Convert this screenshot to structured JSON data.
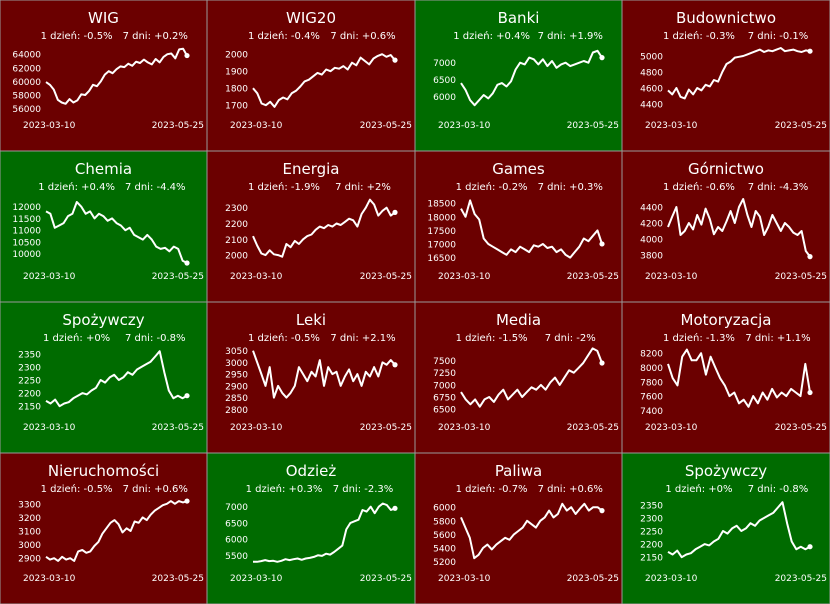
{
  "colors": {
    "negative": "#6b0000",
    "positive": "#006b00",
    "line": "#ffffff",
    "text": "#ffffff",
    "border": "#9a9a9a"
  },
  "labels": {
    "day": "1 dzień:",
    "week": "7 dni:"
  },
  "chart_data": [
    {
      "type": "line",
      "title": "WIG",
      "day_change": "-0.5%",
      "week_change": "+0.2%",
      "trend": "negative",
      "x_start": "2023-03-10",
      "x_end": "2023-05-25",
      "yticks": [
        "56000",
        "58000",
        "60000",
        "62000",
        "64000"
      ],
      "ylim": [
        55500,
        65500
      ],
      "values": [
        59900,
        59500,
        58800,
        57300,
        56900,
        56700,
        57400,
        56900,
        57200,
        58100,
        58000,
        58600,
        59500,
        59300,
        60000,
        61000,
        61500,
        61200,
        61800,
        62200,
        62100,
        62600,
        62300,
        62900,
        62700,
        63200,
        62800,
        62500,
        63300,
        62800,
        63600,
        64000,
        64100,
        63400,
        64700,
        64800,
        63800
      ]
    },
    {
      "type": "line",
      "title": "WIG20",
      "day_change": "-0.4%",
      "week_change": "+0.6%",
      "trend": "negative",
      "x_start": "2023-03-10",
      "x_end": "2023-05-25",
      "yticks": [
        "1700",
        "1800",
        "1900",
        "2000"
      ],
      "ylim": [
        1660,
        2060
      ],
      "values": [
        1800,
        1770,
        1710,
        1700,
        1720,
        1690,
        1730,
        1745,
        1735,
        1770,
        1785,
        1810,
        1840,
        1850,
        1870,
        1890,
        1880,
        1910,
        1900,
        1920,
        1915,
        1930,
        1910,
        1950,
        1935,
        1980,
        1960,
        1940,
        1975,
        1990,
        2000,
        1985,
        1995,
        1965
      ]
    },
    {
      "type": "line",
      "title": "Banki",
      "day_change": "+0.4%",
      "week_change": "+1.9%",
      "trend": "positive",
      "x_start": "2023-03-10",
      "x_end": "2023-05-25",
      "yticks": [
        "6000",
        "6500",
        "7000"
      ],
      "ylim": [
        5550,
        7550
      ],
      "values": [
        6400,
        6200,
        5900,
        5750,
        5900,
        6050,
        5950,
        6100,
        6350,
        6400,
        6300,
        6450,
        6800,
        7000,
        6950,
        7150,
        7100,
        6950,
        7100,
        6900,
        7050,
        6850,
        6950,
        7000,
        6900,
        6950,
        7000,
        7050,
        7000,
        7300,
        7350,
        7150
      ]
    },
    {
      "type": "line",
      "title": "Budownictwo",
      "day_change": "-0.3%",
      "week_change": "-0.1%",
      "trend": "negative",
      "x_start": "2023-03-10",
      "x_end": "2023-05-25",
      "yticks": [
        "4400",
        "4600",
        "4800",
        "5000"
      ],
      "ylim": [
        4300,
        5150
      ],
      "values": [
        4570,
        4520,
        4600,
        4490,
        4470,
        4580,
        4520,
        4600,
        4570,
        4640,
        4620,
        4700,
        4680,
        4800,
        4900,
        4930,
        4980,
        4990,
        5000,
        5020,
        5040,
        5060,
        5080,
        5050,
        5070,
        5060,
        5080,
        5100,
        5060,
        5070,
        5080,
        5060,
        5050,
        5070,
        5060
      ]
    },
    {
      "type": "line",
      "title": "Chemia",
      "day_change": "+0.4%",
      "week_change": "-4.4%",
      "trend": "positive",
      "x_start": "2023-03-10",
      "x_end": "2023-05-25",
      "yticks": [
        "10000",
        "10500",
        "11000",
        "11500",
        "12000"
      ],
      "ylim": [
        9600,
        12500
      ],
      "values": [
        11800,
        11700,
        11100,
        11200,
        11300,
        11600,
        11700,
        12200,
        12000,
        11700,
        11800,
        11500,
        11700,
        11600,
        11400,
        11500,
        11300,
        11200,
        11000,
        11100,
        10800,
        10700,
        10600,
        10800,
        10600,
        10300,
        10200,
        10250,
        10100,
        10300,
        10200,
        9700,
        9600
      ]
    },
    {
      "type": "line",
      "title": "Energia",
      "day_change": "-1.9%",
      "week_change": "+2%",
      "trend": "negative",
      "x_start": "2023-03-10",
      "x_end": "2023-05-25",
      "yticks": [
        "2000",
        "2100",
        "2200",
        "2300"
      ],
      "ylim": [
        1950,
        2380
      ],
      "values": [
        2120,
        2060,
        2010,
        2000,
        2030,
        2005,
        2000,
        1990,
        2070,
        2050,
        2090,
        2070,
        2100,
        2120,
        2130,
        2160,
        2180,
        2170,
        2190,
        2180,
        2200,
        2190,
        2210,
        2230,
        2220,
        2180,
        2260,
        2300,
        2350,
        2320,
        2250,
        2280,
        2300,
        2250,
        2270
      ]
    },
    {
      "type": "line",
      "title": "Games",
      "day_change": "-0.2%",
      "week_change": "+0.3%",
      "trend": "negative",
      "x_start": "2023-03-10",
      "x_end": "2023-05-25",
      "yticks": [
        "16500",
        "17000",
        "17500",
        "18000",
        "18500"
      ],
      "ylim": [
        16300,
        18800
      ],
      "values": [
        18300,
        18000,
        18600,
        18100,
        17900,
        17200,
        17000,
        16900,
        16800,
        16700,
        16600,
        16800,
        16700,
        16900,
        16800,
        16700,
        16950,
        16900,
        17000,
        16850,
        16900,
        16700,
        16800,
        16600,
        16500,
        16700,
        16900,
        17200,
        17100,
        17300,
        17500,
        17000
      ]
    },
    {
      "type": "line",
      "title": "Górnictwo",
      "day_change": "-0.6%",
      "week_change": "-4.3%",
      "trend": "negative",
      "x_start": "2023-03-10",
      "x_end": "2023-05-25",
      "yticks": [
        "3800",
        "4000",
        "4200",
        "4400"
      ],
      "ylim": [
        3700,
        4550
      ],
      "values": [
        4150,
        4280,
        4400,
        4050,
        4100,
        4200,
        4120,
        4300,
        4180,
        4380,
        4250,
        4060,
        4150,
        4100,
        4220,
        4350,
        4200,
        4400,
        4500,
        4300,
        4150,
        4350,
        4280,
        4050,
        4150,
        4300,
        4200,
        4100,
        4200,
        4150,
        4080,
        4050,
        4100,
        3850,
        3780
      ]
    },
    {
      "type": "line",
      "title": "Spożywczy",
      "day_change": "+0%",
      "week_change": "-0.8%",
      "trend": "positive",
      "x_start": "2023-03-10",
      "x_end": "2023-05-25",
      "yticks": [
        "2150",
        "2200",
        "2250",
        "2300",
        "2350"
      ],
      "ylim": [
        2120,
        2380
      ],
      "values": [
        2170,
        2160,
        2175,
        2150,
        2160,
        2165,
        2180,
        2190,
        2200,
        2195,
        2210,
        2220,
        2250,
        2240,
        2260,
        2270,
        2250,
        2260,
        2280,
        2270,
        2290,
        2300,
        2310,
        2320,
        2340,
        2360,
        2280,
        2210,
        2180,
        2190,
        2180,
        2190
      ]
    },
    {
      "type": "line",
      "title": "Leki",
      "day_change": "-0.5%",
      "week_change": "+2.1%",
      "trend": "negative",
      "x_start": "2023-03-10",
      "x_end": "2023-05-25",
      "yticks": [
        "2800",
        "2850",
        "2900",
        "2950",
        "3000",
        "3050"
      ],
      "ylim": [
        2780,
        3070
      ],
      "values": [
        3050,
        3000,
        2950,
        2900,
        2980,
        2850,
        2900,
        2870,
        2850,
        2870,
        2900,
        2980,
        2950,
        2920,
        2960,
        2940,
        3010,
        2900,
        2980,
        2950,
        2960,
        2900,
        2940,
        2970,
        2920,
        2950,
        2900,
        2960,
        2940,
        2980,
        2940,
        3000,
        2990,
        3010,
        2990
      ]
    },
    {
      "type": "line",
      "title": "Media",
      "day_change": "-1.5%",
      "week_change": "-2%",
      "trend": "negative",
      "x_start": "2023-03-10",
      "x_end": "2023-05-25",
      "yticks": [
        "6500",
        "6750",
        "7000",
        "7250",
        "7500"
      ],
      "ylim": [
        6400,
        7800
      ],
      "values": [
        6850,
        6700,
        6600,
        6700,
        6550,
        6700,
        6750,
        6650,
        6800,
        6900,
        6700,
        6800,
        6900,
        6750,
        6850,
        6950,
        6900,
        7000,
        6900,
        7050,
        7150,
        7000,
        7150,
        7300,
        7250,
        7350,
        7450,
        7600,
        7750,
        7700,
        7450
      ]
    },
    {
      "type": "line",
      "title": "Motoryzacja",
      "day_change": "-1.3%",
      "week_change": "+1.1%",
      "trend": "negative",
      "x_start": "2023-03-10",
      "x_end": "2023-05-25",
      "yticks": [
        "7400",
        "7600",
        "7800",
        "8000",
        "8200"
      ],
      "ylim": [
        7350,
        8300
      ],
      "values": [
        8050,
        7850,
        7750,
        8150,
        8250,
        8100,
        8100,
        8200,
        7900,
        8150,
        8000,
        7850,
        7750,
        7600,
        7650,
        7500,
        7550,
        7450,
        7600,
        7500,
        7650,
        7550,
        7700,
        7580,
        7650,
        7600,
        7700,
        7650,
        7600,
        8050,
        7650
      ]
    },
    {
      "type": "line",
      "title": "Nieruchomości",
      "day_change": "-0.5%",
      "week_change": "+0.6%",
      "trend": "negative",
      "x_start": "2023-03-10",
      "x_end": "2023-05-25",
      "yticks": [
        "2900",
        "3000",
        "3100",
        "3200",
        "3300"
      ],
      "ylim": [
        2850,
        3350
      ],
      "values": [
        2910,
        2890,
        2900,
        2880,
        2910,
        2890,
        2900,
        2880,
        2950,
        2960,
        2940,
        2950,
        2990,
        3020,
        3080,
        3120,
        3160,
        3180,
        3150,
        3090,
        3120,
        3100,
        3170,
        3160,
        3200,
        3180,
        3220,
        3250,
        3270,
        3290,
        3300,
        3320,
        3300,
        3320,
        3310,
        3320
      ]
    },
    {
      "type": "line",
      "title": "Odzież",
      "day_change": "+0.3%",
      "week_change": "-2.3%",
      "trend": "positive",
      "x_start": "2023-03-10",
      "x_end": "2023-05-25",
      "yticks": [
        "5500",
        "6000",
        "6500",
        "7000"
      ],
      "ylim": [
        5200,
        7300
      ],
      "values": [
        5300,
        5300,
        5320,
        5350,
        5320,
        5330,
        5300,
        5330,
        5380,
        5350,
        5380,
        5400,
        5360,
        5400,
        5420,
        5450,
        5500,
        5480,
        5550,
        5520,
        5600,
        5700,
        5800,
        6300,
        6500,
        6550,
        6600,
        6900,
        6850,
        7000,
        6800,
        7000,
        7100,
        7050,
        6900,
        6950
      ]
    },
    {
      "type": "line",
      "title": "Paliwa",
      "day_change": "-0.7%",
      "week_change": "+0.6%",
      "trend": "negative",
      "x_start": "2023-03-10",
      "x_end": "2023-05-25",
      "yticks": [
        "5200",
        "5400",
        "5600",
        "5800",
        "6000"
      ],
      "ylim": [
        5150,
        6150
      ],
      "values": [
        5850,
        5700,
        5550,
        5250,
        5300,
        5400,
        5450,
        5380,
        5450,
        5500,
        5550,
        5520,
        5600,
        5650,
        5700,
        5800,
        5750,
        5700,
        5800,
        5850,
        5950,
        5850,
        5900,
        6050,
        5950,
        6000,
        5900,
        5980,
        6050,
        5950,
        6000,
        6000,
        5950
      ]
    },
    {
      "type": "line",
      "title": "Spożywczy",
      "day_change": "+0%",
      "week_change": "-0.8%",
      "trend": "positive",
      "x_start": "2023-03-10",
      "x_end": "2023-05-25",
      "yticks": [
        "2150",
        "2200",
        "2250",
        "2300",
        "2350"
      ],
      "ylim": [
        2120,
        2380
      ],
      "values": [
        2170,
        2160,
        2175,
        2150,
        2160,
        2165,
        2180,
        2190,
        2200,
        2195,
        2210,
        2220,
        2250,
        2240,
        2260,
        2270,
        2250,
        2260,
        2280,
        2270,
        2290,
        2300,
        2310,
        2320,
        2340,
        2360,
        2280,
        2210,
        2180,
        2190,
        2180,
        2190
      ]
    }
  ]
}
